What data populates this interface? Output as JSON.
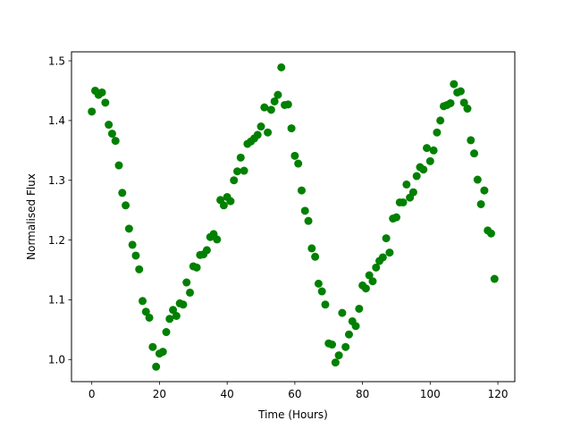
{
  "chart_data": {
    "type": "scatter",
    "title": "",
    "xlabel": "Time (Hours)",
    "ylabel": "Normalised Flux",
    "xlim": [
      -6,
      125
    ],
    "ylim": [
      0.963,
      1.515
    ],
    "xticks": [
      0,
      20,
      40,
      60,
      80,
      100,
      120
    ],
    "yticks": [
      1.0,
      1.1,
      1.2,
      1.3,
      1.4,
      1.5
    ],
    "xtick_labels": [
      "0",
      "20",
      "40",
      "60",
      "80",
      "100",
      "120"
    ],
    "ytick_labels": [
      "1.0",
      "1.1",
      "1.2",
      "1.3",
      "1.4",
      "1.5"
    ],
    "grid": false,
    "marker_color": "#008000",
    "series": [
      {
        "x": [
          0,
          1,
          2,
          3,
          4,
          5,
          6,
          7,
          8,
          9,
          10,
          11,
          12,
          13,
          14,
          15,
          16,
          17,
          18,
          19,
          20,
          21,
          22,
          23,
          24,
          25,
          26,
          27,
          28,
          29,
          30,
          31,
          32,
          33,
          34,
          35,
          36,
          37,
          38,
          39,
          40,
          41,
          42,
          43,
          44,
          45,
          46,
          47,
          48,
          49,
          50,
          51,
          52,
          53,
          54,
          55,
          56,
          57,
          58,
          59,
          60,
          61,
          62,
          63,
          64,
          65,
          66,
          67,
          68,
          69,
          70,
          71,
          72,
          73,
          74,
          75,
          76,
          77,
          78,
          79,
          80,
          81,
          82,
          83,
          84,
          85,
          86,
          87,
          88,
          89,
          90,
          91,
          92,
          93,
          94,
          95,
          96,
          97,
          98,
          99,
          100,
          101,
          102,
          103,
          104,
          105,
          106,
          107,
          108,
          109,
          110,
          111,
          112,
          113,
          114,
          115,
          116,
          117,
          118,
          119
        ],
        "y": [
          1.415,
          1.45,
          1.443,
          1.447,
          1.43,
          1.393,
          1.378,
          1.366,
          1.325,
          1.279,
          1.258,
          1.219,
          1.192,
          1.174,
          1.151,
          1.098,
          1.08,
          1.07,
          1.021,
          0.988,
          1.01,
          1.013,
          1.046,
          1.068,
          1.083,
          1.073,
          1.094,
          1.092,
          1.129,
          1.112,
          1.156,
          1.154,
          1.175,
          1.176,
          1.183,
          1.205,
          1.21,
          1.201,
          1.267,
          1.258,
          1.272,
          1.265,
          1.3,
          1.315,
          1.338,
          1.316,
          1.361,
          1.365,
          1.37,
          1.376,
          1.39,
          1.422,
          1.38,
          1.418,
          1.432,
          1.443,
          1.489,
          1.426,
          1.427,
          1.387,
          1.341,
          1.328,
          1.283,
          1.249,
          1.232,
          1.186,
          1.172,
          1.127,
          1.114,
          1.092,
          1.027,
          1.025,
          0.995,
          1.007,
          1.078,
          1.021,
          1.042,
          1.064,
          1.056,
          1.085,
          1.124,
          1.119,
          1.141,
          1.131,
          1.154,
          1.165,
          1.171,
          1.203,
          1.179,
          1.236,
          1.238,
          1.263,
          1.263,
          1.293,
          1.271,
          1.28,
          1.307,
          1.322,
          1.318,
          1.354,
          1.332,
          1.35,
          1.38,
          1.4,
          1.424,
          1.426,
          1.429,
          1.461,
          1.447,
          1.449,
          1.43,
          1.42,
          1.367,
          1.345,
          1.301,
          1.26,
          1.283,
          1.216,
          1.211,
          1.135
        ]
      }
    ]
  }
}
